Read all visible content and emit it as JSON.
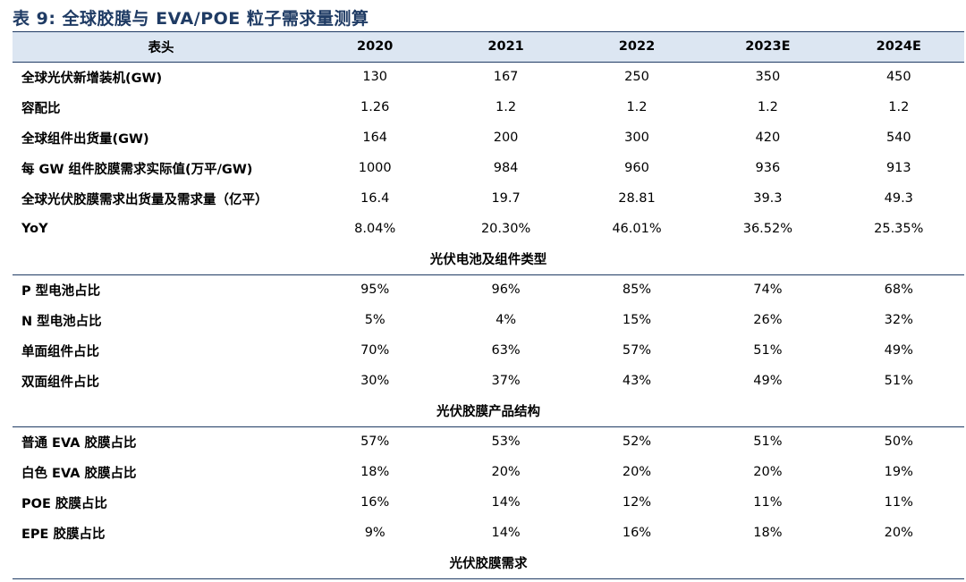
{
  "title": "表 9:  全球胶膜与 EVA/POE 粒子需求量测算",
  "header": [
    "表头",
    "2020",
    "2021",
    "2022",
    "2023E",
    "2024E"
  ],
  "rows": [
    {
      "type": "data",
      "label": "全球光伏新增装机(GW)",
      "values": [
        "130",
        "167",
        "250",
        "350",
        "450"
      ]
    },
    {
      "type": "data",
      "label": "容配比",
      "values": [
        "1.26",
        "1.2",
        "1.2",
        "1.2",
        "1.2"
      ]
    },
    {
      "type": "data",
      "label": "全球组件出货量(GW)",
      "values": [
        "164",
        "200",
        "300",
        "420",
        "540"
      ]
    },
    {
      "type": "data",
      "label": "每 GW 组件胶膜需求实际值(万平/GW)",
      "values": [
        "1000",
        "984",
        "960",
        "936",
        "913"
      ]
    },
    {
      "type": "data",
      "label": "全球光伏胶膜需求出货量及需求量（亿平）",
      "values": [
        "16.4",
        "19.7",
        "28.81",
        "39.3",
        "49.3"
      ]
    },
    {
      "type": "data",
      "label": "YoY",
      "values": [
        "8.04%",
        "20.30%",
        "46.01%",
        "36.52%",
        "25.35%"
      ]
    },
    {
      "type": "section",
      "label": "光伏电池及组件类型"
    },
    {
      "type": "data",
      "label": "P 型电池占比",
      "values": [
        "95%",
        "96%",
        "85%",
        "74%",
        "68%"
      ]
    },
    {
      "type": "data",
      "label": "N 型电池占比",
      "values": [
        "5%",
        "4%",
        "15%",
        "26%",
        "32%"
      ]
    },
    {
      "type": "data",
      "label": "单面组件占比",
      "values": [
        "70%",
        "63%",
        "57%",
        "51%",
        "49%"
      ]
    },
    {
      "type": "data",
      "label": "双面组件占比",
      "values": [
        "30%",
        "37%",
        "43%",
        "49%",
        "51%"
      ]
    },
    {
      "type": "section",
      "label": "光伏胶膜产品结构"
    },
    {
      "type": "data",
      "label": "普通 EVA 胶膜占比",
      "values": [
        "57%",
        "53%",
        "52%",
        "51%",
        "50%"
      ]
    },
    {
      "type": "data",
      "label": "白色 EVA 胶膜占比",
      "values": [
        "18%",
        "20%",
        "20%",
        "20%",
        "19%"
      ]
    },
    {
      "type": "data",
      "label": "POE 胶膜占比",
      "values": [
        "16%",
        "14%",
        "12%",
        "11%",
        "11%"
      ]
    },
    {
      "type": "data",
      "label": "EPE 胶膜占比",
      "values": [
        "9%",
        "14%",
        "16%",
        "18%",
        "20%"
      ]
    },
    {
      "type": "section",
      "label": "光伏胶膜需求"
    }
  ],
  "colors": {
    "accent": "#1f3b64",
    "header_bg": "#dce6f2"
  }
}
